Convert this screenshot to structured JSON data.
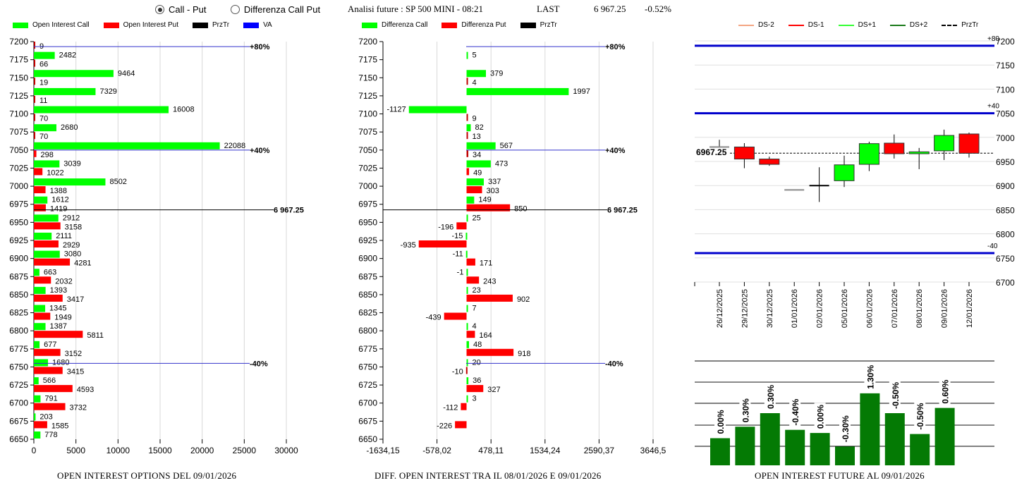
{
  "header": {
    "radio_options": [
      {
        "label": "Call - Put",
        "selected": true
      },
      {
        "label": "Differenza Call Put",
        "selected": false
      }
    ],
    "analysis_title": "Analisi future : SP 500 MINI - 08:21",
    "last_label": "LAST",
    "last_value": "6 967.25",
    "last_change": "-0.52%"
  },
  "colors": {
    "call": "#00ff00",
    "put": "#ff0000",
    "przTr": "#000000",
    "va": "#0000ff",
    "ds_minus2": "#f4a582",
    "ds_minus1": "#ff0000",
    "ds_plus1": "#33ff33",
    "ds_plus2": "#1a7a1a",
    "oi_bar": "#047a04"
  },
  "chart_data": [
    {
      "type": "bar",
      "orientation": "horizontal",
      "title": "OPEN INTEREST OPTIONS DEL 09/01/2026",
      "legend": [
        "Open Interest Call",
        "Open Interest Put",
        "PrzTr",
        "VA"
      ],
      "legend_position": "top",
      "xlim": [
        0,
        30000
      ],
      "x_ticks": [
        "0",
        "5000",
        "10000",
        "15000",
        "20000",
        "25000",
        "30000"
      ],
      "categories": [
        7200,
        7175,
        7150,
        7125,
        7100,
        7075,
        7050,
        7025,
        7000,
        6975,
        6950,
        6925,
        6900,
        6875,
        6850,
        6825,
        6800,
        6775,
        6750,
        6725,
        6700,
        6675,
        6650
      ],
      "series": [
        {
          "name": "Open Interest Call",
          "values": [
            null,
            2482,
            9464,
            7329,
            16008,
            2680,
            22088,
            3039,
            8502,
            1612,
            2912,
            2111,
            3080,
            663,
            1393,
            1345,
            1387,
            677,
            1680,
            566,
            791,
            203,
            778
          ]
        },
        {
          "name": "Open Interest Put",
          "values": [
            9,
            66,
            19,
            11,
            70,
            70,
            298,
            1022,
            1388,
            1419,
            3158,
            2929,
            4281,
            2032,
            3417,
            1949,
            5811,
            3152,
            3415,
            4593,
            3732,
            1585,
            null
          ]
        }
      ],
      "annotations": [
        {
          "label": "+80%",
          "y": 7193
        },
        {
          "label": "+40%",
          "y": 7050
        },
        {
          "label": "-40%",
          "y": 6755
        },
        {
          "label": "6 967.25",
          "y": 6967.25,
          "kind": "PrzTr"
        }
      ],
      "grid": true
    },
    {
      "type": "bar",
      "orientation": "horizontal",
      "title": "DIFF. OPEN INTEREST TRA IL 08/01/2026 E 09/01/2026",
      "legend": [
        "Differenza Call",
        "Differenza Put",
        "PrzTr"
      ],
      "legend_position": "top",
      "xlim": [
        -1634.15,
        3646.5
      ],
      "x_ticks": [
        "-1634,15",
        "-578,02",
        "478,11",
        "1534,24",
        "2590,37",
        "3646,5"
      ],
      "categories": [
        7200,
        7175,
        7150,
        7125,
        7100,
        7075,
        7050,
        7025,
        7000,
        6975,
        6950,
        6925,
        6900,
        6875,
        6850,
        6825,
        6800,
        6775,
        6750,
        6725,
        6700,
        6675,
        6650
      ],
      "series": [
        {
          "name": "Differenza Call",
          "values": [
            null,
            5,
            379,
            1997,
            -1127,
            82,
            567,
            473,
            337,
            149,
            25,
            -15,
            -11,
            -1,
            23,
            7,
            4,
            48,
            20,
            36,
            3,
            null,
            null
          ]
        },
        {
          "name": "Differenza Put",
          "values": [
            null,
            null,
            4,
            null,
            9,
            13,
            34,
            49,
            303,
            850,
            -196,
            -935,
            171,
            243,
            902,
            -439,
            164,
            918,
            -10,
            327,
            -112,
            -226,
            null
          ]
        }
      ],
      "annotations": [
        {
          "label": "+80%",
          "y": 7193
        },
        {
          "label": "+40%",
          "y": 7050
        },
        {
          "label": "-40%",
          "y": 6755
        },
        {
          "label": "6 967.25",
          "y": 6967.25,
          "kind": "PrzTr"
        }
      ],
      "grid": true
    },
    {
      "type": "candlestick",
      "title": "",
      "legend": [
        "DS-2",
        "DS-1",
        "DS+1",
        "DS+2",
        "PrzTr"
      ],
      "legend_position": "top",
      "ylim": [
        6700,
        7200
      ],
      "y_ticks": [
        "7200",
        "7150",
        "7100",
        "7050",
        "7000",
        "6950",
        "6900",
        "6850",
        "6800",
        "6750",
        "6700"
      ],
      "categories": [
        "26/12/2025",
        "29/12/2025",
        "30/12/2025",
        "01/01/2026",
        "02/01/2026",
        "05/01/2026",
        "06/01/2026",
        "07/01/2026",
        "08/01/2026",
        "09/01/2026",
        "12/01/2026"
      ],
      "candles": [
        {
          "open": 6980,
          "close": 6980,
          "high": 6995,
          "low": 6980,
          "dir": "flat"
        },
        {
          "open": 6980,
          "close": 6955,
          "high": 6988,
          "low": 6936,
          "dir": "down"
        },
        {
          "open": 6955,
          "close": 6944,
          "high": 6960,
          "low": 6941,
          "dir": "down"
        },
        {
          "open": 6891,
          "close": 6891,
          "high": 6891,
          "low": 6891,
          "dir": "flat"
        },
        {
          "open": 6900,
          "close": 6900,
          "high": 6938,
          "low": 6866,
          "dir": "doji"
        },
        {
          "open": 6910,
          "close": 6943,
          "high": 6962,
          "low": 6897,
          "dir": "up"
        },
        {
          "open": 6944,
          "close": 6987,
          "high": 6991,
          "low": 6930,
          "dir": "up"
        },
        {
          "open": 6988,
          "close": 6966,
          "high": 7006,
          "low": 6956,
          "dir": "down"
        },
        {
          "open": 6966,
          "close": 6970,
          "high": 6978,
          "low": 6934,
          "dir": "up"
        },
        {
          "open": 6972,
          "close": 7004,
          "high": 7016,
          "low": 6953,
          "dir": "up"
        },
        {
          "open": 7007,
          "close": 6967,
          "high": 7010,
          "low": 6958,
          "dir": "down"
        }
      ],
      "levels": [
        {
          "label": "+80",
          "y": 7190
        },
        {
          "label": "+40",
          "y": 7050
        },
        {
          "label": "-40",
          "y": 6760
        }
      ],
      "przTr": {
        "label": "6967.25",
        "y": 6967.25
      },
      "grid": true
    },
    {
      "type": "bar",
      "title": "OPEN INTEREST FUTURE AL 09/01/2026",
      "categories": [
        "26/12/2025",
        "29/12/2025",
        "30/12/2025",
        "01/01/2026",
        "02/01/2026",
        "05/01/2026",
        "06/01/2026",
        "07/01/2026",
        "08/01/2026",
        "09/01/2026"
      ],
      "values_relative": [
        0.26,
        0.37,
        0.5,
        0.34,
        0.31,
        0.18,
        0.69,
        0.5,
        0.3,
        0.55
      ],
      "labels": [
        "0.00%",
        "0.30%",
        "0.30%",
        "-0.40%",
        "0.00%",
        "-0.30%",
        "1.30%",
        "-0.50%",
        "-0.50%",
        "0.60%"
      ],
      "grid": true
    }
  ]
}
